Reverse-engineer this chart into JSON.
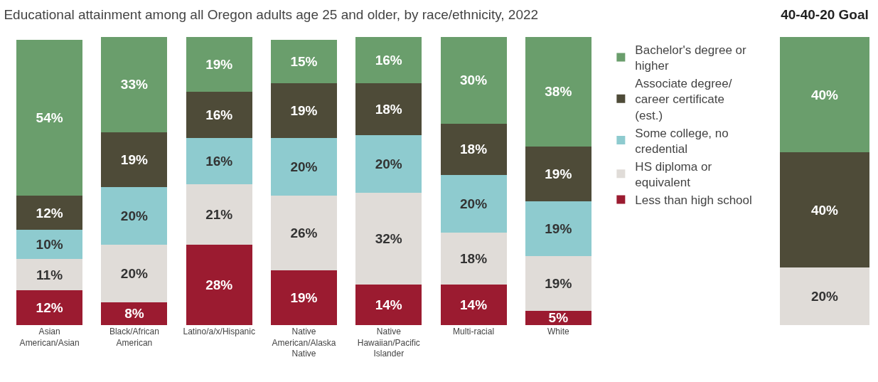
{
  "chart_data": [
    {
      "type": "bar",
      "title": "Educational attainment among all Oregon adults age 25 and older, by race/ethnicity, 2022",
      "stacked": true,
      "legend": "right",
      "tick_labels": "x",
      "ylim": [
        0,
        100
      ],
      "categories": [
        "Asian American/Asian",
        "Black/African American",
        "Latino/a/x/Hispanic",
        "Native American/Alaska Native",
        "Native Hawaiian/Pacific Islander",
        "Multi-racial",
        "White"
      ],
      "series": [
        {
          "name": "Less than high school",
          "color": "#9b1b30",
          "values": [
            12,
            8,
            28,
            19,
            14,
            14,
            5
          ],
          "value_labels": [
            "12%",
            "8%",
            "28%",
            "19%",
            "14%",
            "14%",
            "5%"
          ]
        },
        {
          "name": "HS diploma or equivalent",
          "color": "#e0dcd8",
          "values": [
            11,
            20,
            21,
            26,
            32,
            18,
            19
          ],
          "value_labels": [
            "11%",
            "20%",
            "21%",
            "26%",
            "32%",
            "18%",
            "19%"
          ]
        },
        {
          "name": "Some college, no credential",
          "color": "#8ecbcf",
          "values": [
            10,
            20,
            16,
            20,
            20,
            20,
            19
          ],
          "value_labels": [
            "10%",
            "20%",
            "16%",
            "20%",
            "20%",
            "20%",
            "19%"
          ]
        },
        {
          "name": "Associate degree/ career certificate (est.)",
          "color": "#4e4b38",
          "values": [
            12,
            19,
            16,
            19,
            18,
            18,
            19
          ],
          "value_labels": [
            "12%",
            "19%",
            "16%",
            "19%",
            "18%",
            "18%",
            "19%"
          ]
        },
        {
          "name": "Bachelor's degree or higher",
          "color": "#6a9e6c",
          "values": [
            54,
            33,
            19,
            15,
            16,
            30,
            38
          ],
          "value_labels": [
            "54%",
            "33%",
            "19%",
            "15%",
            "16%",
            "30%",
            "38%"
          ]
        }
      ]
    },
    {
      "type": "bar",
      "title": "40-40-20 Goal",
      "stacked": true,
      "legend": false,
      "tick_labels": false,
      "ylim": [
        0,
        100
      ],
      "categories": [
        null
      ],
      "series": [
        {
          "color": "#e0dcd8",
          "values": [
            20
          ],
          "value_labels": [
            "20%"
          ]
        },
        {
          "color": "#4e4b38",
          "values": [
            40
          ],
          "value_labels": [
            "40%"
          ]
        },
        {
          "color": "#6a9e6c",
          "values": [
            40
          ],
          "value_labels": [
            "40%"
          ]
        }
      ]
    }
  ]
}
